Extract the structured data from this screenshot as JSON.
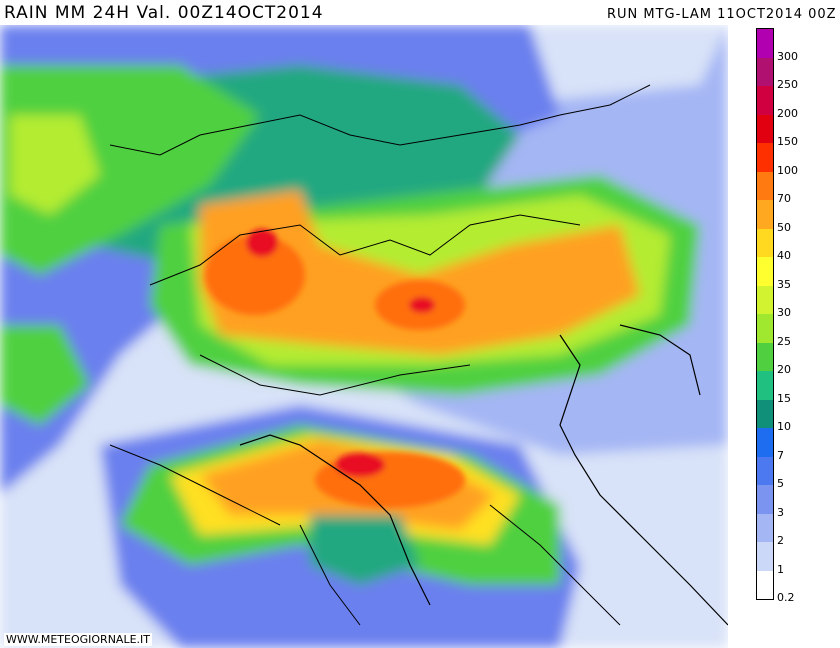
{
  "header": {
    "title": "RAIN  MM  24H  Val.  00Z14OCT2014",
    "run": "RUN  MTG-LAM  11OCT2014  00Z"
  },
  "watermark": "WWW.METEOGIORNALE.IT",
  "legend": {
    "levels": [
      "300",
      "250",
      "200",
      "150",
      "100",
      "70",
      "50",
      "40",
      "35",
      "30",
      "25",
      "20",
      "15",
      "10",
      "7",
      "5",
      "3",
      "2",
      "1",
      "0.2"
    ],
    "colors": [
      "#b000b0",
      "#b01070",
      "#d00040",
      "#e00010",
      "#ff3000",
      "#ff7a10",
      "#ffa820",
      "#ffd820",
      "#ffff30",
      "#d2f430",
      "#a0e830",
      "#50d040",
      "#20c080",
      "#109078",
      "#1e6cf0",
      "#4c78f0",
      "#7a94f0",
      "#a4b6f4",
      "#ccd8f8",
      "#ffffff"
    ]
  },
  "colors": {
    "very_light": "#d8e2f8",
    "light": "#a4b6f4",
    "blue": "#6a80ee",
    "teal": "#20a880",
    "green": "#50d040",
    "yellow_green": "#b4ec30",
    "yellow": "#ffe020",
    "orange": "#ffa020",
    "dark_orange": "#ff7010",
    "red": "#e81020"
  }
}
